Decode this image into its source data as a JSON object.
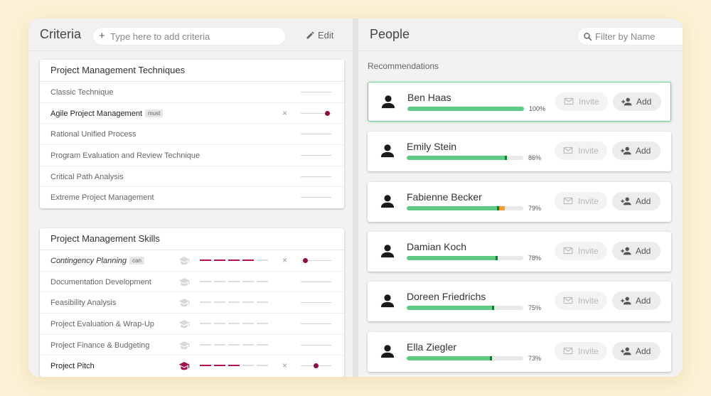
{
  "criteria": {
    "title": "Criteria",
    "add_placeholder": "Type here to add criteria",
    "edit_label": "Edit",
    "groups": [
      {
        "title": "Project Management Techniques",
        "items": [
          {
            "label": "Classic Technique",
            "selected": false
          },
          {
            "label": "Agile Project Management",
            "selected": true,
            "tag": "must",
            "weight": 0.88
          },
          {
            "label": "Rational Unified Process",
            "selected": false
          },
          {
            "label": "Program Evaluation and Review Technique",
            "selected": false
          },
          {
            "label": "Critical Path Analysis",
            "selected": false
          },
          {
            "label": "Extreme Project Management",
            "selected": false
          }
        ]
      },
      {
        "title": "Project Management Skills",
        "items": [
          {
            "label": "Contingency Planning",
            "selected": true,
            "italic": true,
            "tag": "can",
            "level": 4,
            "weight": 0.15
          },
          {
            "label": "Documentation Development",
            "selected": false,
            "level": 0
          },
          {
            "label": "Feasibility Analysis",
            "selected": false,
            "level": 0
          },
          {
            "label": "Project Evaluation & Wrap-Up",
            "selected": false,
            "level": 0
          },
          {
            "label": "Project Finance & Budgeting",
            "selected": false,
            "level": 0
          },
          {
            "label": "Project Pitch",
            "selected": true,
            "level": 3,
            "weight": 0.5,
            "hat_active": true
          }
        ]
      }
    ]
  },
  "people": {
    "title": "People",
    "filter_placeholder": "Filter by Name",
    "recommendations_label": "Recommendations",
    "invite_label": "Invite",
    "add_label": "Add",
    "list": [
      {
        "name": "Ben Haas",
        "percent": "100%",
        "score": 1.0,
        "selected": true
      },
      {
        "name": "Emily Stein",
        "percent": "86%",
        "score": 0.86
      },
      {
        "name": "Fabienne Becker",
        "percent": "79%",
        "score": 0.79,
        "orange": 0.05
      },
      {
        "name": "Damian Koch",
        "percent": "78%",
        "score": 0.78
      },
      {
        "name": "Doreen Friedrichs",
        "percent": "75%",
        "score": 0.75
      },
      {
        "name": "Ella Ziegler",
        "percent": "73%",
        "score": 0.73
      }
    ]
  },
  "colors": {
    "accent": "#8b0e45",
    "match": "#5fcb85",
    "match_dark": "#0e7a32",
    "warn": "#f39c32"
  }
}
